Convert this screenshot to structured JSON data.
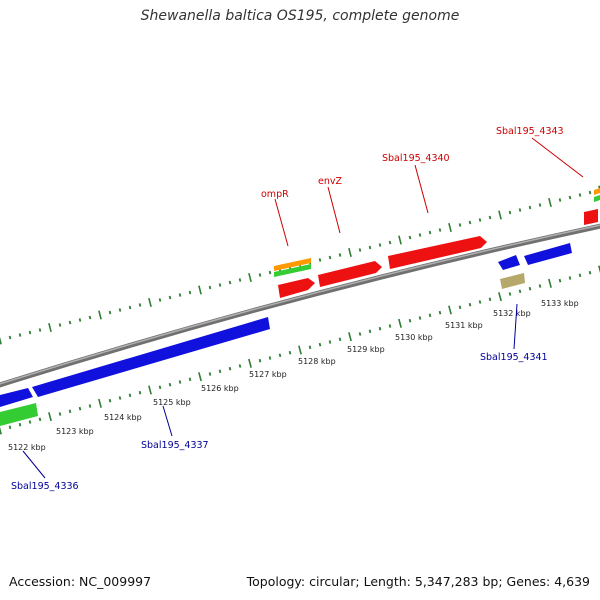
{
  "title": "Shewanella baltica OS195, complete genome",
  "accession": "Accession: NC_009997",
  "topology": "Topology: circular; Length: 5,347,283 bp; Genes: 4,639",
  "colors": {
    "backbone": "#808080",
    "forward_label": "#cc0000",
    "reverse_label": "#000099",
    "tick": "#2e7d32",
    "red_gene": "#ee1111",
    "blue_gene": "#1111dd",
    "green_gene": "#33cc33",
    "orange_gene": "#ff9900",
    "tan_gene": "#b5a86a"
  },
  "scale_labels": [
    "5122 kbp",
    "5123 kbp",
    "5124 kbp",
    "5125 kbp",
    "5126 kbp",
    "5127 kbp",
    "5128 kbp",
    "5129 kbp",
    "5130 kbp",
    "5131 kbp",
    "5132 kbp",
    "5133 kbp"
  ],
  "forward_gene_labels": [
    "ompR",
    "envZ",
    "Sbal195_4340",
    "Sbal195_4343"
  ],
  "reverse_gene_labels": [
    "Sbal195_4336",
    "Sbal195_4337",
    "Sbal195_4341"
  ]
}
